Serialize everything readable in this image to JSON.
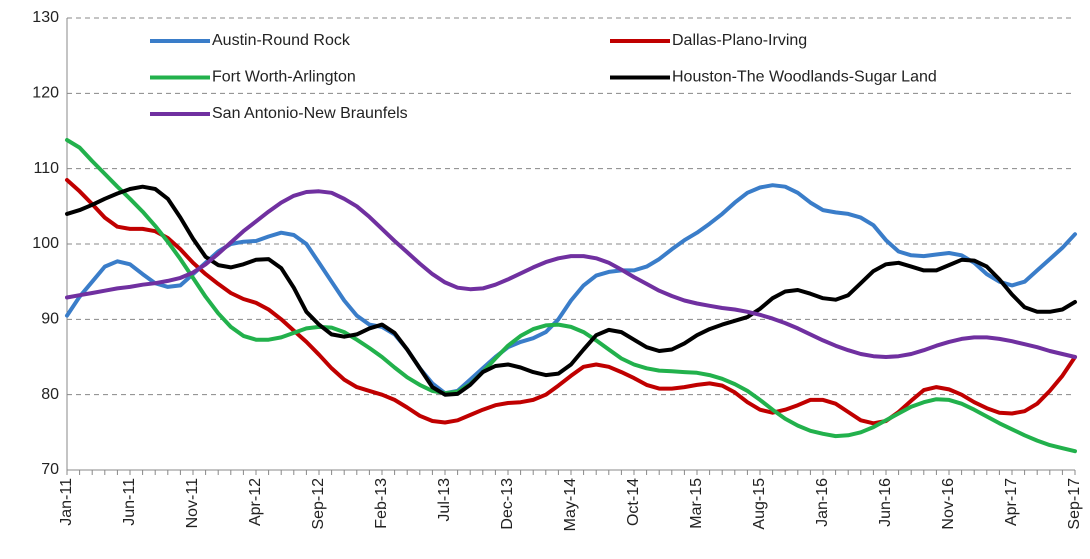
{
  "chart_data": {
    "type": "line",
    "categories": [
      "Jan-11",
      null,
      null,
      null,
      null,
      "Jun-11",
      null,
      null,
      null,
      null,
      "Nov-11",
      null,
      null,
      null,
      null,
      "Apr-12",
      null,
      null,
      null,
      null,
      "Sep-12",
      null,
      null,
      null,
      null,
      "Feb-13",
      null,
      null,
      null,
      null,
      "Jul-13",
      null,
      null,
      null,
      null,
      "Dec-13",
      null,
      null,
      null,
      null,
      "May-14",
      null,
      null,
      null,
      null,
      "Oct-14",
      null,
      null,
      null,
      null,
      "Mar-15",
      null,
      null,
      null,
      null,
      "Aug-15",
      null,
      null,
      null,
      null,
      "Jan-16",
      null,
      null,
      null,
      null,
      "Jun-16",
      null,
      null,
      null,
      null,
      "Nov-16",
      null,
      null,
      null,
      null,
      "Apr-17",
      null,
      null,
      null,
      null,
      "Sep-17"
    ],
    "series": [
      {
        "name": "Austin-Round Rock",
        "color": "#3a7dc9",
        "values": [
          90.5,
          93,
          95,
          97,
          97.7,
          97.3,
          96,
          94.8,
          94.3,
          94.5,
          96,
          97.5,
          99,
          100,
          100.3,
          100.4,
          101,
          101.5,
          101.2,
          100,
          97.5,
          95,
          92.5,
          90.5,
          89.3,
          89,
          88,
          86,
          83.5,
          81.5,
          80.2,
          80.5,
          82,
          83.5,
          85,
          86.3,
          87,
          87.5,
          88.3,
          90,
          92.5,
          94.5,
          95.8,
          96.3,
          96.5,
          96.5,
          97,
          98,
          99.3,
          100.5,
          101.5,
          102.7,
          104,
          105.5,
          106.8,
          107.5,
          107.8,
          107.6,
          106.8,
          105.5,
          104.5,
          104.2,
          104,
          103.5,
          102.5,
          100.5,
          99,
          98.5,
          98.4,
          98.6,
          98.8,
          98.5,
          97.5,
          96,
          95,
          94.5,
          95,
          96.5,
          98,
          99.5,
          101.3
        ]
      },
      {
        "name": "Dallas-Plano-Irving",
        "color": "#c00000",
        "values": [
          108.5,
          107,
          105.3,
          103.5,
          102.3,
          102,
          102,
          101.7,
          100.8,
          99.3,
          97.5,
          96,
          94.7,
          93.5,
          92.7,
          92.2,
          91.3,
          90,
          88.5,
          87,
          85.3,
          83.5,
          82,
          81,
          80.5,
          80,
          79.3,
          78.3,
          77.2,
          76.5,
          76.3,
          76.6,
          77.3,
          78,
          78.6,
          78.9,
          79,
          79.3,
          80,
          81.2,
          82.5,
          83.7,
          84,
          83.7,
          83,
          82.2,
          81.3,
          80.8,
          80.8,
          81,
          81.3,
          81.5,
          81.2,
          80.3,
          79,
          78,
          77.6,
          78,
          78.6,
          79.3,
          79.3,
          78.8,
          77.7,
          76.6,
          76.2,
          76.5,
          77.7,
          79.2,
          80.6,
          81,
          80.7,
          80,
          79,
          78.2,
          77.6,
          77.5,
          77.8,
          78.8,
          80.5,
          82.5,
          85
        ]
      },
      {
        "name": "Fort Worth-Arlington",
        "color": "#22b14c",
        "values": [
          113.8,
          112.8,
          111,
          109.3,
          107.6,
          106,
          104.3,
          102.4,
          100.3,
          98,
          95.5,
          93,
          90.8,
          89,
          87.8,
          87.3,
          87.3,
          87.6,
          88.2,
          88.8,
          89,
          88.9,
          88.3,
          87.3,
          86.2,
          85,
          83.6,
          82.3,
          81.3,
          80.5,
          80.2,
          80.4,
          81.4,
          83,
          84.8,
          86.5,
          87.8,
          88.7,
          89.2,
          89.3,
          89,
          88.3,
          87.2,
          86,
          84.8,
          84,
          83.5,
          83.2,
          83.1,
          83,
          82.9,
          82.6,
          82.1,
          81.4,
          80.5,
          79.3,
          78,
          76.8,
          75.9,
          75.2,
          74.8,
          74.5,
          74.6,
          75,
          75.7,
          76.6,
          77.5,
          78.4,
          79,
          79.4,
          79.3,
          78.8,
          78,
          77.1,
          76.2,
          75.4,
          74.6,
          73.9,
          73.3,
          72.9,
          72.5
        ]
      },
      {
        "name": "Houston-The Woodlands-Sugar Land",
        "color": "#000000",
        "values": [
          104,
          104.5,
          105.2,
          106,
          106.7,
          107.3,
          107.6,
          107.3,
          106,
          103.5,
          100.7,
          98.3,
          97.2,
          96.9,
          97.3,
          97.9,
          98,
          96.8,
          94.2,
          91,
          89.3,
          88,
          87.7,
          88,
          88.8,
          89.3,
          88.2,
          86,
          83.5,
          81,
          80,
          80.1,
          81.3,
          83,
          83.8,
          84,
          83.6,
          83,
          82.6,
          82.8,
          84,
          86,
          87.9,
          88.6,
          88.3,
          87.3,
          86.3,
          85.8,
          86,
          86.8,
          87.9,
          88.7,
          89.3,
          89.8,
          90.3,
          91.4,
          92.8,
          93.7,
          93.9,
          93.4,
          92.8,
          92.6,
          93.2,
          94.8,
          96.4,
          97.3,
          97.5,
          97,
          96.5,
          96.5,
          97.2,
          97.9,
          97.8,
          97,
          95.3,
          93.3,
          91.6,
          91,
          91,
          91.3,
          92.3
        ]
      },
      {
        "name": "San Antonio-New Braunfels",
        "color": "#7030a0",
        "values": [
          92.9,
          93.2,
          93.5,
          93.8,
          94.1,
          94.3,
          94.6,
          94.8,
          95.1,
          95.5,
          96.2,
          97.3,
          98.7,
          100.2,
          101.7,
          103,
          104.3,
          105.5,
          106.4,
          106.9,
          107,
          106.8,
          106,
          105,
          103.6,
          102,
          100.4,
          98.9,
          97.4,
          96,
          94.9,
          94.2,
          94,
          94.1,
          94.6,
          95.3,
          96.1,
          96.9,
          97.6,
          98.1,
          98.4,
          98.4,
          98.1,
          97.5,
          96.6,
          95.6,
          94.7,
          93.8,
          93.1,
          92.5,
          92.1,
          91.8,
          91.5,
          91.3,
          91,
          90.6,
          90.1,
          89.5,
          88.8,
          88,
          87.2,
          86.5,
          85.9,
          85.4,
          85.1,
          85,
          85.1,
          85.4,
          85.9,
          86.5,
          87,
          87.4,
          87.6,
          87.6,
          87.4,
          87.1,
          86.7,
          86.3,
          85.8,
          85.4,
          85
        ]
      }
    ],
    "ylim": [
      70,
      130
    ],
    "yticks": [
      70,
      80,
      90,
      100,
      110,
      120,
      130
    ],
    "grid": true
  }
}
